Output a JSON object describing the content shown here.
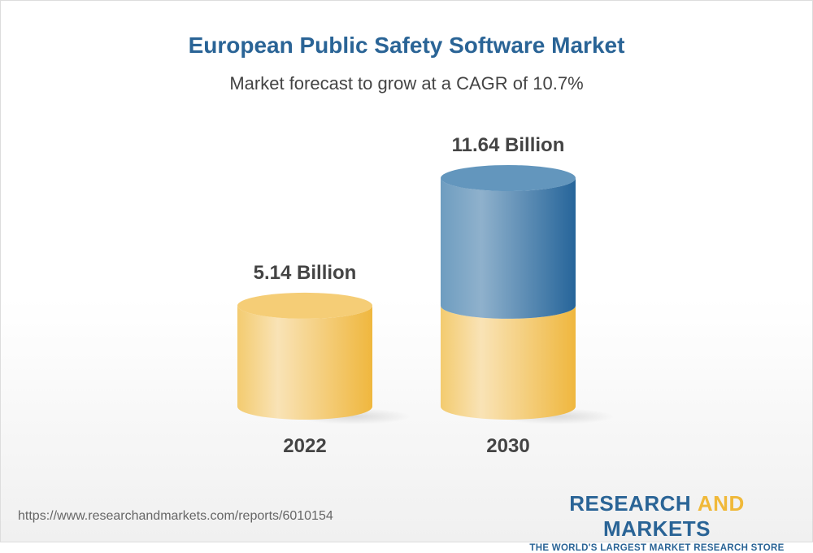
{
  "header": {
    "title": "European Public Safety Software Market",
    "subtitle": "Market forecast to grow at a CAGR of 10.7%"
  },
  "chart_data": {
    "type": "bar",
    "style": "3d-cylinder",
    "categories": [
      "2022",
      "2030"
    ],
    "values": [
      5.14,
      11.64
    ],
    "data_labels": [
      "5.14 Billion",
      "11.64 Billion"
    ],
    "title": "European Public Safety Software Market",
    "subtitle": "Market forecast to grow at a CAGR of 10.7%",
    "unit": "Billion",
    "colors": {
      "base": "#f0b93a",
      "growth": "#2a6496"
    }
  },
  "footer": {
    "url": "https://www.researchandmarkets.com/reports/6010154",
    "logo_part1": "RESEARCH ",
    "logo_part2": "AND",
    "logo_part3": " MARKETS",
    "tagline": "THE WORLD'S LARGEST MARKET RESEARCH STORE"
  }
}
